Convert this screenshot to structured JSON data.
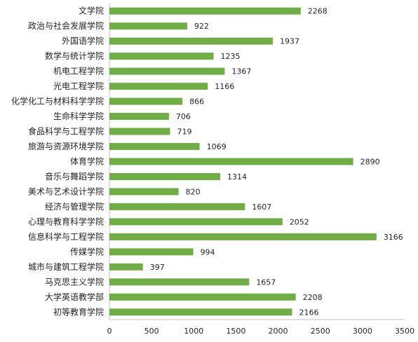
{
  "chart_data": {
    "type": "bar",
    "orientation": "horizontal",
    "categories": [
      "文学院",
      "政治与社会发展学院",
      "外国语学院",
      "数学与统计学院",
      "机电工程学院",
      "光电工程学院",
      "化学化工与材料科学学院",
      "生命科学学院",
      "食品科学与工程学院",
      "旅游与资源环境学院",
      "体育学院",
      "音乐与舞蹈学院",
      "美术与艺术设计学院",
      "经济与管理学院",
      "心理与教育科学学院",
      "信息科学与工程学院",
      "传媒学院",
      "城市与建筑工程学院",
      "马克思主义学院",
      "大学英语教学部",
      "初等教育学院"
    ],
    "values": [
      2268,
      922,
      1937,
      1235,
      1367,
      1166,
      866,
      706,
      719,
      1069,
      2890,
      1314,
      820,
      1607,
      2052,
      3166,
      994,
      397,
      1657,
      2208,
      2166
    ],
    "data_labels": [
      "2268",
      "922",
      "1937",
      "1235",
      "1367",
      "1166",
      "866",
      "706",
      "719",
      "1069",
      "2890",
      "1314",
      "820",
      "1607",
      "2052",
      "3166",
      "994",
      "397",
      "1657",
      "2208",
      "2166"
    ],
    "xlim": [
      0,
      3500
    ],
    "x_ticks": [
      "0",
      "500",
      "1000",
      "1500",
      "2000",
      "2500",
      "3000",
      "3500"
    ],
    "title": "",
    "xlabel": "",
    "ylabel": "",
    "grid": false,
    "legend": "none",
    "colors": {
      "bar": "#70ad47",
      "axis": "#bfbfbf",
      "text": "#222222"
    }
  }
}
